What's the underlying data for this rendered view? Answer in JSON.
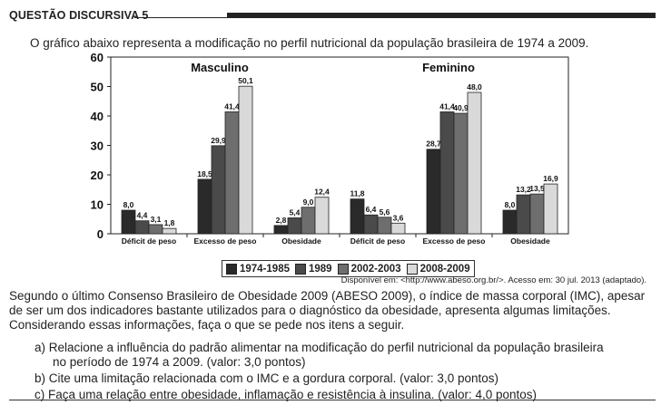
{
  "header": {
    "title": "QUESTÃO DISCURSIVA 5"
  },
  "intro": "O gráfico abaixo representa a modificação no perfil nutricional da população brasileira de 1974 a 2009.",
  "colors": {
    "series": [
      "#2a2a2a",
      "#4a4a4a",
      "#6e6e6e",
      "#d9d9d9"
    ]
  },
  "chart_data": {
    "type": "bar",
    "ylim": [
      0,
      60
    ],
    "yticks": [
      "0",
      "10",
      "20",
      "30",
      "40",
      "50",
      "60"
    ],
    "groups": [
      {
        "name": "Masculino",
        "categories": [
          "Déficit de peso",
          "Excesso de peso",
          "Obesidade"
        ],
        "series": [
          {
            "name": "1974-1985",
            "values": [
              8.0,
              18.5,
              2.8
            ],
            "labels": [
              "8,0",
              "18,5",
              "2,8"
            ]
          },
          {
            "name": "1989",
            "values": [
              4.4,
              29.9,
              5.4
            ],
            "labels": [
              "4,4",
              "29,9",
              "5,4"
            ]
          },
          {
            "name": "2002-2003",
            "values": [
              3.1,
              41.4,
              9.0
            ],
            "labels": [
              "3,1",
              "41,4",
              "9,0"
            ]
          },
          {
            "name": "2008-2009",
            "values": [
              1.8,
              50.1,
              12.4
            ],
            "labels": [
              "1,8",
              "50,1",
              "12,4"
            ]
          }
        ]
      },
      {
        "name": "Feminino",
        "categories": [
          "Déficit de peso",
          "Excesso de peso",
          "Obesidade"
        ],
        "series": [
          {
            "name": "1974-1985",
            "values": [
              11.8,
              28.7,
              8.0
            ],
            "labels": [
              "11,8",
              "28,7",
              "8,0"
            ]
          },
          {
            "name": "1989",
            "values": [
              6.4,
              41.4,
              13.2
            ],
            "labels": [
              "6,4",
              "41,4",
              "13,2"
            ]
          },
          {
            "name": "2002-2003",
            "values": [
              5.6,
              40.9,
              13.5
            ],
            "labels": [
              "5,6",
              "40,9",
              "13,5"
            ]
          },
          {
            "name": "2008-2009",
            "values": [
              3.6,
              48.0,
              16.9
            ],
            "labels": [
              "3,6",
              "48,0",
              "16,9"
            ]
          }
        ]
      }
    ],
    "legend": [
      "1974-1985",
      "1989",
      "2002-2003",
      "2008-2009"
    ],
    "source": "Disponível em: <http://www.abeso.org.br/>. Acesso em: 30 jul. 2013 (adaptado)."
  },
  "paragraph": "Segundo o último Consenso Brasileiro de Obesidade 2009 (ABESO 2009), o índice de massa corporal (IMC), apesar de ser um dos indicadores bastante utilizados para o diagnóstico da obesidade, apresenta algumas limitações. Considerando essas informações, faça o que se pede nos itens a seguir.",
  "items": [
    {
      "text": "a) Relacione a influência do padrão alimentar na modificação do perfil nutricional da população brasileira",
      "cont": "no período de 1974 a 2009. (valor: 3,0 pontos)"
    },
    {
      "text": "b) Cite uma limitação relacionada com o IMC e a gordura corporal. (valor: 3,0 pontos)"
    },
    {
      "text": "c) Faça uma relação entre obesidade, inflamação e resistência à insulina. (valor: 4,0 pontos)"
    }
  ]
}
